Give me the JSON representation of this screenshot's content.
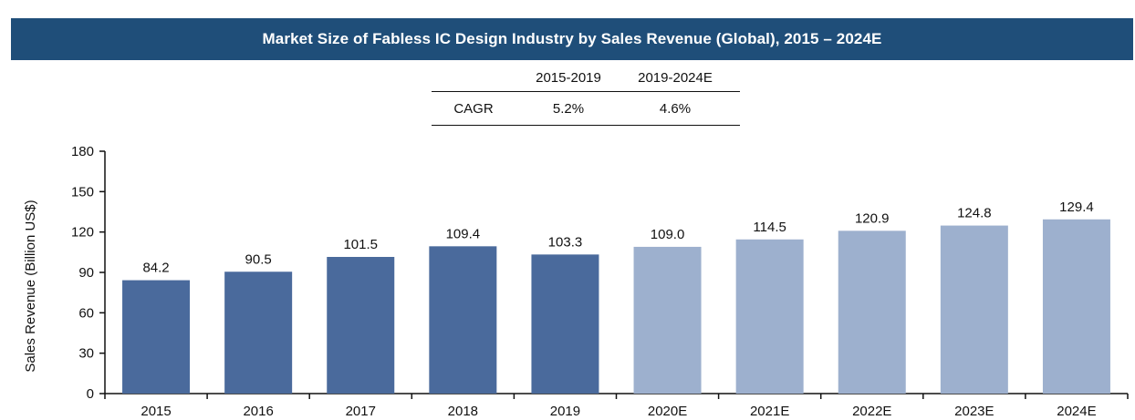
{
  "title": "Market Size of Fabless IC Design Industry by Sales Revenue (Global), 2015 – 2024E",
  "cagr_table": {
    "headers": [
      "",
      "2015-2019",
      "2019-2024E"
    ],
    "row": [
      "CAGR",
      "5.2%",
      "4.6%"
    ]
  },
  "colors": {
    "title_bar": "#1f4e79",
    "actual": "#4a6a9c",
    "estimate": "#9db0ce"
  },
  "chart_data": {
    "type": "bar",
    "title": "Market Size of Fabless IC Design Industry by Sales Revenue (Global), 2015 – 2024E",
    "xlabel": "",
    "ylabel": "Sales Revenue (Billion US$)",
    "ylim": [
      0,
      180
    ],
    "yticks": [
      0,
      30,
      60,
      90,
      120,
      150,
      180
    ],
    "categories": [
      "2015",
      "2016",
      "2017",
      "2018",
      "2019",
      "2020E",
      "2021E",
      "2022E",
      "2023E",
      "2024E"
    ],
    "values": [
      84.2,
      90.5,
      101.5,
      109.4,
      103.3,
      109.0,
      114.5,
      120.9,
      124.8,
      129.4
    ],
    "value_labels": [
      "84.2",
      "90.5",
      "101.5",
      "109.4",
      "103.3",
      "109.0",
      "114.5",
      "120.9",
      "124.8",
      "129.4"
    ],
    "estimated": [
      false,
      false,
      false,
      false,
      false,
      true,
      true,
      true,
      true,
      true
    ],
    "grid": false,
    "legend": "none"
  }
}
